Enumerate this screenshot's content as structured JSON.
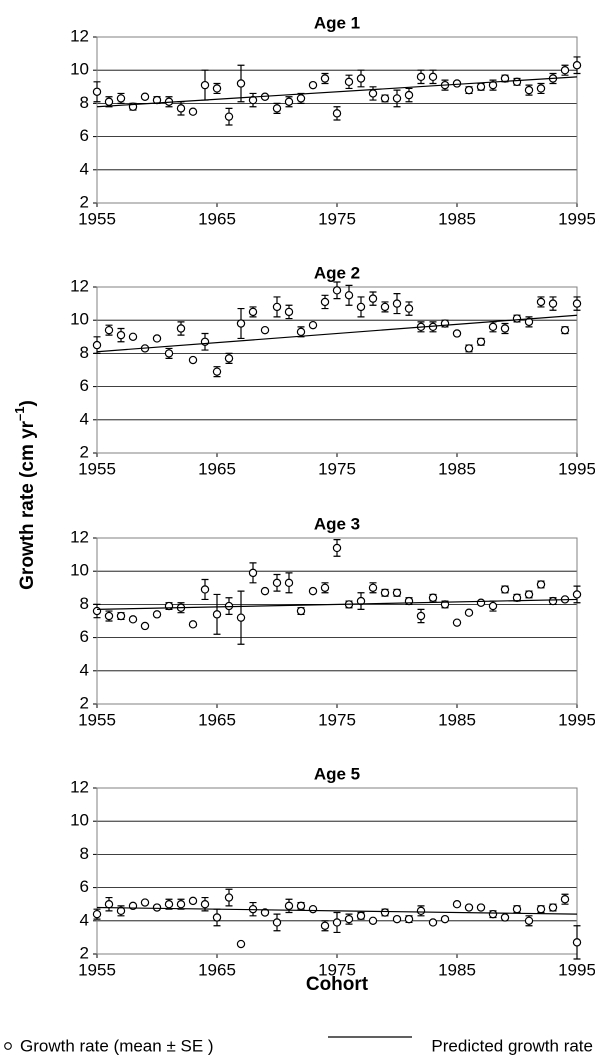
{
  "chart_data": [
    {
      "type": "scatter",
      "title": "Age 1",
      "x": [
        1955,
        1956,
        1957,
        1958,
        1959,
        1960,
        1961,
        1962,
        1963,
        1964,
        1965,
        1966,
        1967,
        1968,
        1969,
        1970,
        1971,
        1972,
        1973,
        1974,
        1975,
        1976,
        1977,
        1978,
        1979,
        1980,
        1981,
        1982,
        1983,
        1984,
        1985,
        1986,
        1987,
        1988,
        1989,
        1990,
        1991,
        1992,
        1993,
        1994,
        1995
      ],
      "xlim": [
        1955,
        1995
      ],
      "xticks": [
        1955,
        1965,
        1975,
        1985,
        1995
      ],
      "ylim": [
        2,
        12
      ],
      "yticks": [
        2,
        4,
        6,
        8,
        10,
        12
      ],
      "grid": true,
      "series": [
        {
          "values": [
            8.7,
            8.1,
            8.3,
            7.8,
            8.4,
            8.2,
            8.1,
            7.7,
            7.5,
            9.1,
            8.9,
            7.2,
            9.2,
            8.2,
            8.4,
            7.7,
            8.1,
            8.3,
            9.1,
            9.5,
            7.4,
            9.3,
            9.5,
            8.6,
            8.3,
            8.3,
            8.5,
            9.6,
            9.6,
            9.1,
            9.2,
            8.8,
            9.0,
            9.1,
            9.5,
            9.3,
            8.8,
            8.9,
            9.5,
            10.0,
            10.3
          ],
          "errors": [
            0.6,
            0.3,
            0.3,
            0.2,
            0.1,
            0.2,
            0.3,
            0.4,
            0.1,
            0.9,
            0.3,
            0.5,
            1.1,
            0.4,
            0.1,
            0.3,
            0.3,
            0.3,
            0.1,
            0.3,
            0.4,
            0.4,
            0.5,
            0.4,
            0.2,
            0.5,
            0.4,
            0.4,
            0.4,
            0.3,
            0.1,
            0.2,
            0.2,
            0.3,
            0.2,
            0.2,
            0.3,
            0.3,
            0.3,
            0.3,
            0.5
          ],
          "color": "#000000"
        },
        {
          "x": [
            1955,
            1995
          ],
          "values": [
            7.8,
            9.6
          ],
          "color": "#000000"
        }
      ]
    },
    {
      "type": "scatter",
      "title": "Age 2",
      "x": [
        1955,
        1956,
        1957,
        1958,
        1959,
        1960,
        1961,
        1962,
        1963,
        1964,
        1965,
        1966,
        1967,
        1968,
        1969,
        1970,
        1971,
        1972,
        1973,
        1974,
        1975,
        1976,
        1977,
        1978,
        1979,
        1980,
        1981,
        1982,
        1983,
        1984,
        1985,
        1986,
        1987,
        1988,
        1989,
        1990,
        1991,
        1992,
        1993,
        1994,
        1995
      ],
      "xlim": [
        1955,
        1995
      ],
      "xticks": [
        1955,
        1965,
        1975,
        1985,
        1995
      ],
      "ylim": [
        2,
        12
      ],
      "yticks": [
        2,
        4,
        6,
        8,
        10,
        12
      ],
      "grid": true,
      "series": [
        {
          "values": [
            8.5,
            9.4,
            9.1,
            9.0,
            8.3,
            8.9,
            8.0,
            9.5,
            7.6,
            8.7,
            6.9,
            7.7,
            9.8,
            10.5,
            9.4,
            10.8,
            10.5,
            9.3,
            9.7,
            11.1,
            11.8,
            11.5,
            10.8,
            11.3,
            10.8,
            11.0,
            10.7,
            9.6,
            9.6,
            9.8,
            9.2,
            8.3,
            8.7,
            9.6,
            9.5,
            10.1,
            9.9,
            11.1,
            11.0,
            9.4,
            11.0
          ],
          "errors": [
            0.5,
            0.3,
            0.4,
            0.1,
            0.1,
            0.1,
            0.3,
            0.4,
            0.1,
            0.5,
            0.3,
            0.3,
            0.9,
            0.3,
            0.1,
            0.6,
            0.4,
            0.3,
            0.1,
            0.4,
            0.5,
            0.6,
            0.6,
            0.4,
            0.3,
            0.6,
            0.4,
            0.3,
            0.3,
            0.2,
            0.1,
            0.2,
            0.2,
            0.3,
            0.3,
            0.2,
            0.3,
            0.3,
            0.4,
            0.2,
            0.4
          ],
          "color": "#000000"
        },
        {
          "x": [
            1955,
            1995
          ],
          "values": [
            8.1,
            10.3
          ],
          "color": "#000000"
        }
      ]
    },
    {
      "type": "scatter",
      "title": "Age 3",
      "x": [
        1955,
        1956,
        1957,
        1958,
        1959,
        1960,
        1961,
        1962,
        1963,
        1964,
        1965,
        1966,
        1967,
        1968,
        1969,
        1970,
        1971,
        1972,
        1973,
        1974,
        1975,
        1976,
        1977,
        1978,
        1979,
        1980,
        1981,
        1982,
        1983,
        1984,
        1985,
        1986,
        1987,
        1988,
        1989,
        1990,
        1991,
        1992,
        1993,
        1994,
        1995
      ],
      "xlim": [
        1955,
        1995
      ],
      "xticks": [
        1955,
        1965,
        1975,
        1985,
        1995
      ],
      "ylim": [
        2,
        12
      ],
      "yticks": [
        2,
        4,
        6,
        8,
        10,
        12
      ],
      "grid": true,
      "series": [
        {
          "values": [
            7.6,
            7.3,
            7.3,
            7.1,
            6.7,
            7.4,
            7.9,
            7.8,
            6.8,
            8.9,
            7.4,
            7.9,
            7.2,
            9.9,
            8.8,
            9.3,
            9.3,
            7.6,
            8.8,
            9.0,
            11.4,
            8.0,
            8.2,
            9.0,
            8.7,
            8.7,
            8.2,
            7.3,
            8.4,
            8.0,
            6.9,
            7.5,
            8.1,
            7.9,
            8.9,
            8.4,
            8.6,
            9.2,
            8.2,
            8.3,
            8.6
          ],
          "errors": [
            0.4,
            0.3,
            0.2,
            0.1,
            0.1,
            0.1,
            0.2,
            0.3,
            0.1,
            0.6,
            1.2,
            0.5,
            1.6,
            0.6,
            0.1,
            0.5,
            0.6,
            0.2,
            0.1,
            0.3,
            0.5,
            0.2,
            0.5,
            0.3,
            0.2,
            0.2,
            0.2,
            0.4,
            0.2,
            0.2,
            0.1,
            0.1,
            0.1,
            0.3,
            0.2,
            0.2,
            0.2,
            0.2,
            0.2,
            0.1,
            0.5
          ],
          "color": "#000000"
        },
        {
          "x": [
            1955,
            1995
          ],
          "values": [
            7.7,
            8.3
          ],
          "color": "#000000"
        }
      ]
    },
    {
      "type": "scatter",
      "title": "Age 5",
      "x": [
        1955,
        1956,
        1957,
        1958,
        1959,
        1960,
        1961,
        1962,
        1963,
        1964,
        1965,
        1966,
        1967,
        1968,
        1969,
        1970,
        1971,
        1972,
        1973,
        1974,
        1975,
        1976,
        1977,
        1978,
        1979,
        1980,
        1981,
        1982,
        1983,
        1984,
        1985,
        1986,
        1987,
        1988,
        1989,
        1990,
        1991,
        1992,
        1993,
        1994,
        1995
      ],
      "xlim": [
        1955,
        1995
      ],
      "xticks": [
        1955,
        1965,
        1975,
        1985,
        1995
      ],
      "ylim": [
        2,
        12
      ],
      "yticks": [
        2,
        4,
        6,
        8,
        10,
        12
      ],
      "grid": true,
      "series": [
        {
          "name": "Growth rate (mean ± SE )",
          "values": [
            4.4,
            5.0,
            4.6,
            4.9,
            5.1,
            4.8,
            5.0,
            5.0,
            5.2,
            5.0,
            4.2,
            5.4,
            2.6,
            4.7,
            4.5,
            3.9,
            4.9,
            4.9,
            4.7,
            3.7,
            3.9,
            4.1,
            4.3,
            4.0,
            4.5,
            4.1,
            4.1,
            4.6,
            3.9,
            4.1,
            5.0,
            4.8,
            4.8,
            4.4,
            4.2,
            4.7,
            4.0,
            4.7,
            4.8,
            5.3,
            2.7
          ],
          "errors": [
            0.3,
            0.4,
            0.3,
            0.1,
            0.1,
            0.1,
            0.3,
            0.3,
            0.1,
            0.4,
            0.5,
            0.5,
            0,
            0.4,
            0.1,
            0.5,
            0.4,
            0.2,
            0.1,
            0.3,
            0.6,
            0.3,
            0.2,
            0.1,
            0.2,
            0.1,
            0.2,
            0.3,
            0.1,
            0.1,
            0.1,
            0.1,
            0.1,
            0.2,
            0.1,
            0.2,
            0.3,
            0.2,
            0.2,
            0.3,
            1.0
          ],
          "color": "#000000"
        },
        {
          "name": "Predicted growth rate",
          "x": [
            1955,
            1995
          ],
          "values": [
            4.8,
            4.4
          ],
          "color": "#000000"
        }
      ]
    }
  ],
  "y_label": {
    "text": "Growth rate (cm  yr",
    "sup": "–1",
    "end": ")"
  },
  "x_label": "Cohort"
}
